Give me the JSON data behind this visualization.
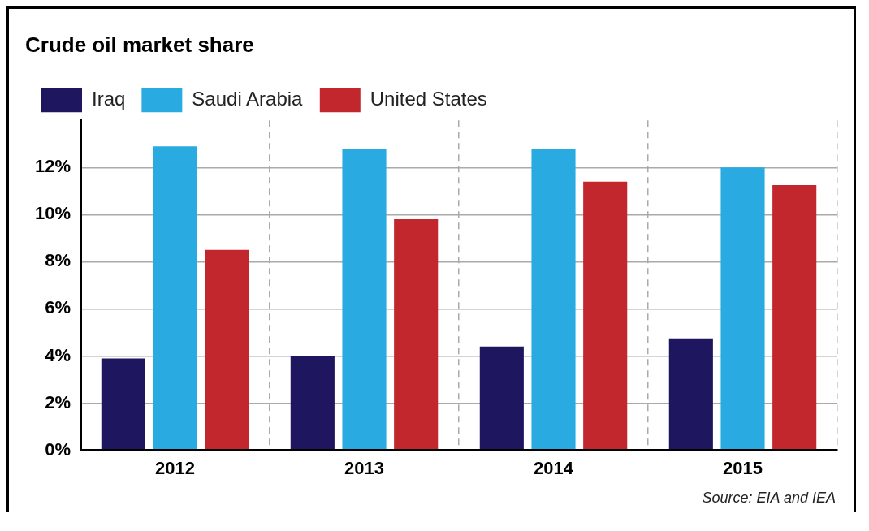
{
  "chart_data": {
    "type": "bar",
    "title": "Crude oil market share",
    "categories": [
      "2012",
      "2013",
      "2014",
      "2015"
    ],
    "series": [
      {
        "name": "Iraq",
        "color": "#1f1660",
        "values": [
          3.9,
          4.0,
          4.4,
          4.75
        ]
      },
      {
        "name": "Saudi Arabia",
        "color": "#29abe2",
        "values": [
          12.9,
          12.8,
          12.8,
          12.0
        ]
      },
      {
        "name": "United States",
        "color": "#c1272d",
        "values": [
          8.5,
          9.8,
          11.4,
          11.25
        ]
      }
    ],
    "ylim": [
      0,
      14
    ],
    "yticks": [
      {
        "value": 0,
        "label": "0%"
      },
      {
        "value": 2,
        "label": "2%"
      },
      {
        "value": 4,
        "label": "4%"
      },
      {
        "value": 6,
        "label": "6%"
      },
      {
        "value": 8,
        "label": "8%"
      },
      {
        "value": 10,
        "label": "10%"
      },
      {
        "value": 12,
        "label": "12%"
      }
    ],
    "grid": true,
    "legend": "top left",
    "annotations": [
      "Source: EIA and IEA"
    ]
  }
}
